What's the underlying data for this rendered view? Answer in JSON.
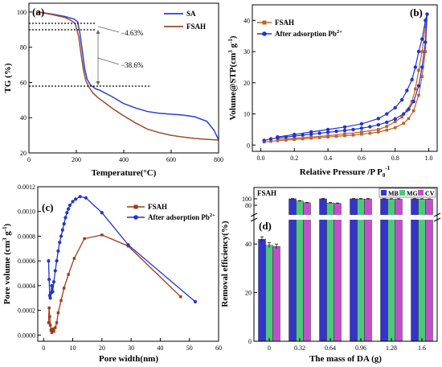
{
  "chart_data": [
    {
      "panel": "(a)",
      "type": "line",
      "xlabel": "Temperature(°C)",
      "ylabel": "TG (%)",
      "xlim": [
        0,
        800
      ],
      "ylim": [
        20,
        105
      ],
      "xticks": [
        0,
        200,
        400,
        600,
        800
      ],
      "yticks": [
        20,
        40,
        60,
        80,
        100
      ],
      "legend": "top-right",
      "series": [
        {
          "name": "SA",
          "color": "#2a3fd6",
          "x": [
            30,
            60,
            100,
            150,
            190,
            205,
            215,
            225,
            235,
            245,
            260,
            280,
            300,
            350,
            400,
            450,
            500,
            550,
            600,
            650,
            700,
            750,
            780,
            800
          ],
          "y": [
            100,
            99.6,
            98.8,
            97.5,
            96,
            94.5,
            88,
            78,
            68,
            62,
            58.5,
            56.5,
            55.5,
            52,
            48,
            45.5,
            43.5,
            42.5,
            42,
            41.5,
            40.5,
            38,
            33,
            27.5
          ]
        },
        {
          "name": "FSAH",
          "color": "#9c4a2a",
          "x": [
            30,
            60,
            100,
            150,
            180,
            195,
            210,
            220,
            230,
            240,
            255,
            270,
            290,
            320,
            350,
            400,
            450,
            500,
            550,
            600,
            650,
            700,
            750,
            800
          ],
          "y": [
            100,
            99.5,
            98.5,
            97,
            95,
            93.5,
            86,
            76,
            67,
            61,
            57,
            54,
            51.5,
            48.5,
            45.5,
            41,
            37,
            33.5,
            31.5,
            30,
            29,
            28.2,
            27.7,
            27.3
          ]
        }
      ],
      "annotations": [
        "−4.63%",
        "−38.6%"
      ]
    },
    {
      "panel": "(b)",
      "type": "line",
      "xlabel": "Relative Pressure /P P",
      "xlabel_sub": "0",
      "xlabel_sup": "-1",
      "ylabel": "Volume@STP(cm",
      "ylabel_sup1": "3",
      "ylabel_mid": " g",
      "ylabel_sup2": "-1",
      "ylabel_end": ")",
      "xlim": [
        -0.05,
        1.05
      ],
      "ylim": [
        -2,
        45
      ],
      "xticks": [
        0.0,
        0.2,
        0.4,
        0.6,
        0.8,
        1.0
      ],
      "xtick_labels": [
        "0.0",
        "0.2",
        "0.4",
        "0.6",
        "0.8",
        "1.0"
      ],
      "yticks": [
        0,
        10,
        20,
        30,
        40
      ],
      "legend": "top-left",
      "series": [
        {
          "name": "FSAH",
          "color": "#c0602a",
          "marker": "square",
          "x": [
            0.02,
            0.06,
            0.1,
            0.15,
            0.2,
            0.25,
            0.3,
            0.35,
            0.4,
            0.45,
            0.5,
            0.55,
            0.6,
            0.65,
            0.7,
            0.75,
            0.8,
            0.85,
            0.88,
            0.91,
            0.94,
            0.96,
            0.98,
            0.99,
            0.98,
            0.96,
            0.94,
            0.92,
            0.9,
            0.87,
            0.84,
            0.8,
            0.75,
            0.7,
            0.6,
            0.5,
            0.4,
            0.3,
            0.2,
            0.1
          ],
          "y": [
            1.0,
            1.2,
            1.4,
            1.6,
            1.8,
            2.0,
            2.2,
            2.4,
            2.6,
            2.8,
            3.0,
            3.2,
            3.5,
            3.8,
            4.2,
            4.8,
            5.6,
            7.0,
            8.5,
            11.0,
            16.0,
            22.0,
            30.0,
            42.0,
            38.0,
            30.0,
            24.0,
            18.0,
            14.0,
            11.0,
            9.0,
            7.5,
            6.0,
            5.0,
            4.2,
            3.6,
            3.0,
            2.6,
            2.2,
            1.8
          ]
        },
        {
          "name": "After adsorption Pb",
          "name_sup": "2+",
          "color": "#2233cc",
          "marker": "circle",
          "x": [
            0.02,
            0.06,
            0.1,
            0.15,
            0.2,
            0.25,
            0.3,
            0.35,
            0.4,
            0.45,
            0.5,
            0.55,
            0.6,
            0.65,
            0.7,
            0.75,
            0.8,
            0.85,
            0.88,
            0.91,
            0.94,
            0.96,
            0.98,
            0.99,
            0.98,
            0.96,
            0.94,
            0.92,
            0.9,
            0.87,
            0.84,
            0.8,
            0.75,
            0.7,
            0.6,
            0.5,
            0.4,
            0.3,
            0.2,
            0.1
          ],
          "y": [
            1.5,
            2.0,
            2.3,
            2.6,
            2.9,
            3.2,
            3.5,
            3.8,
            4.1,
            4.4,
            4.7,
            5.0,
            5.4,
            5.9,
            6.5,
            7.3,
            8.4,
            10.0,
            11.5,
            14.0,
            19.0,
            25.0,
            33.0,
            42.0,
            40.0,
            34.0,
            30.0,
            25.0,
            21.0,
            17.5,
            14.5,
            12.0,
            10.0,
            8.5,
            6.8,
            5.8,
            5.0,
            4.2,
            3.4,
            2.6
          ]
        }
      ]
    },
    {
      "panel": "(c)",
      "type": "line",
      "xlabel": "Pore width(nm)",
      "ylabel": "Pore volume (cm",
      "ylabel_sup1": "3",
      "ylabel_mid": " g",
      "ylabel_sup2": "-1",
      "ylabel_end": ")",
      "xlim": [
        -2,
        60
      ],
      "ylim": [
        -5e-05,
        0.0012
      ],
      "xticks": [
        0,
        10,
        20,
        30,
        40,
        50,
        60
      ],
      "yticks": [
        0.0,
        0.0002,
        0.0004,
        0.0006,
        0.0008,
        0.001,
        0.0012
      ],
      "ytick_labels": [
        "0.0000",
        "0.0002",
        "0.0004",
        "0.0006",
        "0.0008",
        "0.0010",
        "0.0012"
      ],
      "legend": "top-right",
      "series": [
        {
          "name": "FSAH",
          "color": "#9c3a1a",
          "marker": "square",
          "x": [
            1.7,
            1.9,
            2.1,
            2.3,
            2.5,
            2.8,
            3.1,
            3.5,
            4.0,
            4.5,
            5.0,
            6.0,
            7.0,
            8.5,
            10.5,
            14.0,
            20.0,
            29.0,
            47.0
          ],
          "y": [
            0.0001,
            0.00022,
            0.00015,
            8e-05,
            4e-05,
            2e-05,
            5e-05,
            3e-05,
            6e-05,
            0.0001,
            0.00018,
            0.00028,
            0.00038,
            0.00049,
            0.00062,
            0.00078,
            0.00081,
            0.00072,
            0.00031
          ]
        },
        {
          "name": "After adsorption Pb",
          "name_sup": "2+",
          "color": "#2233cc",
          "marker": "circle",
          "x": [
            1.7,
            1.9,
            2.1,
            2.3,
            2.5,
            2.8,
            3.1,
            3.5,
            4.0,
            4.5,
            5.0,
            5.5,
            6.0,
            6.5,
            7.0,
            7.5,
            8.0,
            8.5,
            9.0,
            10.0,
            11.0,
            12.5,
            14.5,
            20.0,
            29.0,
            52.0
          ],
          "y": [
            0.0006,
            0.00045,
            0.00032,
            0.0003,
            0.00034,
            0.0004,
            0.00035,
            0.00043,
            0.00052,
            0.0006,
            0.00068,
            0.00075,
            0.0008,
            0.00085,
            0.0009,
            0.00095,
            0.00099,
            0.00102,
            0.00105,
            0.00108,
            0.0011,
            0.00112,
            0.00111,
            0.00099,
            0.00073,
            0.00027
          ]
        }
      ]
    },
    {
      "panel": "(d)",
      "type": "bar",
      "title": "FSAH",
      "xlabel": "The mass of DA (g)",
      "ylabel": "Removal efficiency(%)",
      "categories": [
        "0",
        "0.32",
        "0.64",
        "0.96",
        "1.28",
        "1.6"
      ],
      "axis_break": true,
      "lower_ylim": [
        0,
        50
      ],
      "lower_yticks": [
        0,
        20,
        40
      ],
      "upper_ylim": [
        50,
        100
      ],
      "upper_yticks": [
        80,
        100
      ],
      "legend": "top-right",
      "series": [
        {
          "name": "MB",
          "color": "#3434c8",
          "values": [
            42,
            100,
            100,
            100,
            100,
            100
          ],
          "errors": [
            1.0,
            1.0,
            1.2,
            1.0,
            1.0,
            1.0
          ]
        },
        {
          "name": "MG",
          "color": "#4ec77e",
          "values": [
            39.5,
            93,
            87,
            99.5,
            99,
            99
          ],
          "errors": [
            1.0,
            1.5,
            1.5,
            1.5,
            1.5,
            1.5
          ]
        },
        {
          "name": "CV",
          "color": "#c14fc8",
          "values": [
            39,
            88,
            86,
            99.5,
            99,
            99
          ],
          "errors": [
            1.0,
            1.0,
            1.0,
            1.5,
            1.5,
            1.0
          ]
        }
      ]
    }
  ]
}
